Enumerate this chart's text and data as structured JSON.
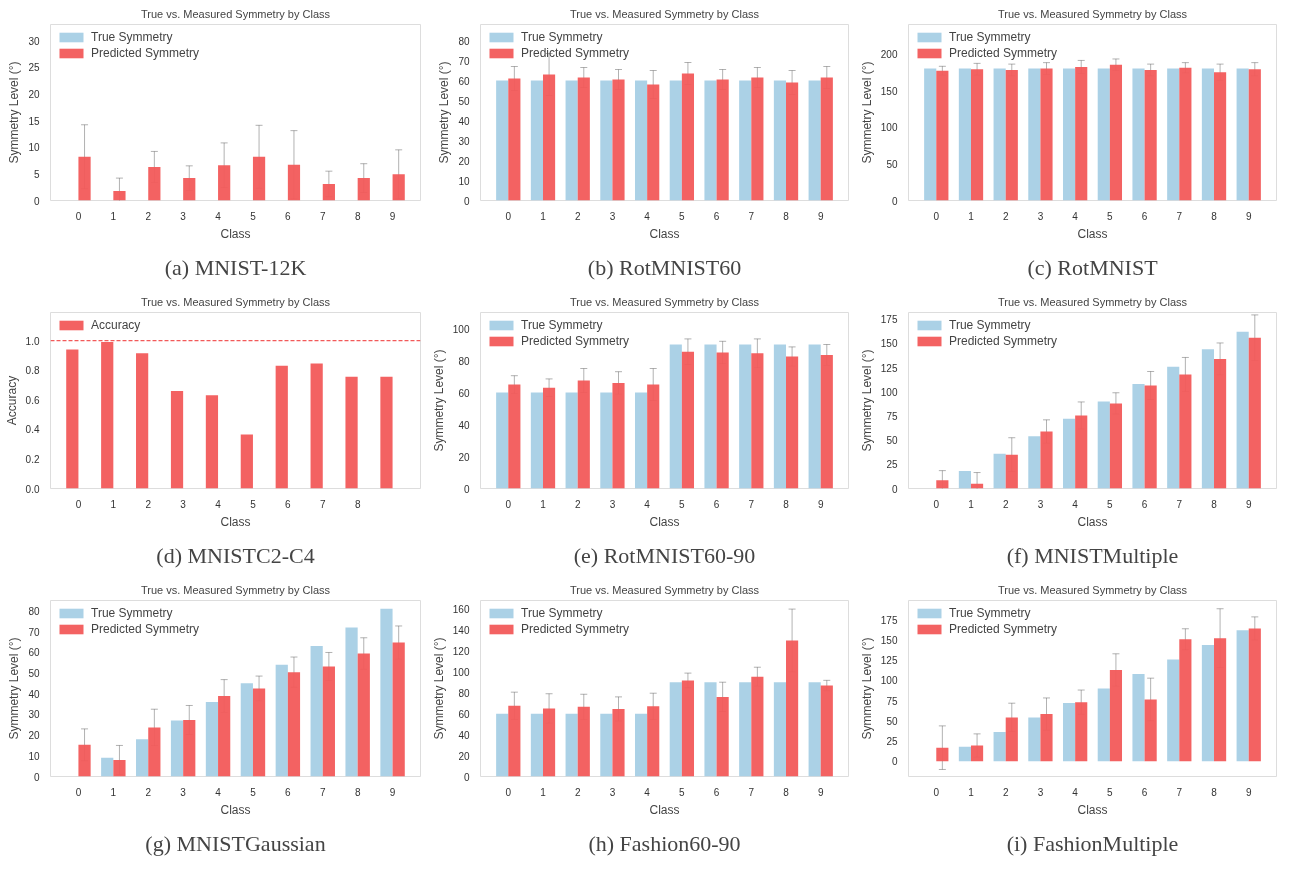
{
  "chart_data": [
    {
      "type": "bar",
      "title": "True vs. Measured Symmetry by Class",
      "xlabel": "Class",
      "ylabel": "Symmetry Level (°)",
      "categories": [
        "0",
        "1",
        "2",
        "3",
        "4",
        "5",
        "6",
        "7",
        "8",
        "9"
      ],
      "ylim": [
        0,
        33
      ],
      "yticks": [
        0,
        5,
        10,
        15,
        20,
        25,
        30
      ],
      "legend": "top left",
      "annotations": [
        "(a) MNIST-12K"
      ],
      "series": [
        {
          "name": "True Symmetry",
          "color": "#a6cfe5",
          "values": [
            0,
            0,
            0,
            0,
            0,
            0,
            0,
            0,
            0,
            0
          ]
        },
        {
          "name": "Predicted Symmetry",
          "color": "#f25a5a",
          "values": [
            8.2,
            1.8,
            6.3,
            4.2,
            6.6,
            8.2,
            6.7,
            3.1,
            4.2,
            4.9
          ],
          "errors": [
            6.0,
            2.4,
            2.9,
            2.3,
            4.2,
            5.9,
            6.4,
            2.4,
            2.7,
            4.6
          ]
        }
      ]
    },
    {
      "type": "bar",
      "title": "True vs. Measured Symmetry by Class",
      "xlabel": "Class",
      "ylabel": "Symmetry Level (°)",
      "categories": [
        "0",
        "1",
        "2",
        "3",
        "4",
        "5",
        "6",
        "7",
        "8",
        "9"
      ],
      "ylim": [
        0,
        88
      ],
      "yticks": [
        0,
        10,
        20,
        30,
        40,
        50,
        60,
        70,
        80
      ],
      "legend": "top left",
      "annotations": [
        "(b) RotMNIST60"
      ],
      "series": [
        {
          "name": "True Symmetry",
          "color": "#a6cfe5",
          "values": [
            60,
            60,
            60,
            60,
            60,
            60,
            60,
            60,
            60,
            60
          ]
        },
        {
          "name": "Predicted Symmetry",
          "color": "#f25a5a",
          "values": [
            61,
            63,
            61.5,
            60.5,
            58,
            63.5,
            60.5,
            61.5,
            59,
            61.5
          ],
          "errors": [
            6,
            10.5,
            5,
            5,
            7,
            5.5,
            5,
            5,
            6,
            5.5
          ]
        }
      ]
    },
    {
      "type": "bar",
      "title": "True vs. Measured Symmetry by Class",
      "xlabel": "Class",
      "ylabel": "Symmetry Level (°)",
      "categories": [
        "0",
        "1",
        "2",
        "3",
        "4",
        "5",
        "6",
        "7",
        "8",
        "9"
      ],
      "ylim": [
        0,
        240
      ],
      "yticks": [
        0,
        50,
        100,
        150,
        200
      ],
      "legend": "top left",
      "annotations": [
        "(c) RotMNIST"
      ],
      "series": [
        {
          "name": "True Symmetry",
          "color": "#a6cfe5",
          "values": [
            180,
            180,
            180,
            180,
            180,
            180,
            180,
            180,
            180,
            180
          ]
        },
        {
          "name": "Predicted Symmetry",
          "color": "#f25a5a",
          "values": [
            177,
            179,
            178,
            180,
            182,
            185,
            178,
            181,
            175,
            179
          ],
          "errors": [
            6,
            8,
            8,
            8,
            9,
            8,
            8,
            7,
            11,
            9
          ]
        }
      ]
    },
    {
      "type": "bar",
      "title": "True vs. Measured Symmetry by Class",
      "xlabel": "Class",
      "ylabel": "Accuracy",
      "categories": [
        "0",
        "1",
        "2",
        "3",
        "4",
        "5",
        "6",
        "7",
        "8",
        null
      ],
      "ylim": [
        0,
        1.19
      ],
      "yticks": [
        {
          "value": 0,
          "label": "0.0"
        },
        0.2,
        0.4,
        0.6,
        0.8,
        {
          "value": 1,
          "label": "1.0"
        }
      ],
      "legend": "top left",
      "annotations": [
        "(d) MNISTC2-C4"
      ],
      "ref_lines": [
        {
          "axis": "y",
          "value": 1.0,
          "color": "#f25a5a",
          "line_style": "dashed"
        }
      ],
      "series": [
        {
          "name": "Accuracy",
          "color": "#f25a5a",
          "values": [
            0.94,
            0.99,
            0.915,
            0.66,
            0.63,
            0.365,
            0.83,
            0.845,
            0.755,
            0.755
          ]
        }
      ]
    },
    {
      "type": "bar",
      "title": "True vs. Measured Symmetry by Class",
      "xlabel": "Class",
      "ylabel": "Symmetry Level (°)",
      "categories": [
        "0",
        "1",
        "2",
        "3",
        "4",
        "5",
        "6",
        "7",
        "8",
        "9"
      ],
      "ylim": [
        0,
        110
      ],
      "yticks": [
        0,
        20,
        40,
        60,
        80,
        100
      ],
      "legend": "top left",
      "annotations": [
        "(e) RotMNIST60-90"
      ],
      "series": [
        {
          "name": "True Symmetry",
          "color": "#a6cfe5",
          "values": [
            60,
            60,
            60,
            60,
            60,
            90,
            90,
            90,
            90,
            90
          ]
        },
        {
          "name": "Predicted Symmetry",
          "color": "#f25a5a",
          "values": [
            65,
            63,
            67.5,
            66,
            65,
            85.5,
            85,
            84.5,
            82.5,
            83.5
          ],
          "errors": [
            5.5,
            5.5,
            7.5,
            7,
            10,
            8,
            7,
            9,
            6,
            6.5
          ]
        }
      ]
    },
    {
      "type": "bar",
      "title": "True vs. Measured Symmetry by Class",
      "xlabel": "Class",
      "ylabel": "Symmetry Level (°)",
      "categories": [
        "0",
        "1",
        "2",
        "3",
        "4",
        "5",
        "6",
        "7",
        "8",
        "9"
      ],
      "ylim": [
        0,
        182
      ],
      "yticks": [
        0,
        25,
        50,
        75,
        100,
        125,
        150,
        175
      ],
      "legend": "top left",
      "annotations": [
        "(f) MNISTMultiple"
      ],
      "series": [
        {
          "name": "True Symmetry",
          "color": "#a6cfe5",
          "values": [
            0,
            18,
            36,
            54,
            72,
            90,
            108,
            126,
            144,
            162
          ]
        },
        {
          "name": "Predicted Symmetry",
          "color": "#f25a5a",
          "values": [
            8.5,
            5,
            35,
            59,
            75.5,
            88,
            106.5,
            118,
            134,
            156
          ],
          "errors": [
            10,
            11.5,
            17.5,
            12,
            14,
            11,
            14.5,
            17.5,
            16.5,
            23.5
          ]
        }
      ]
    },
    {
      "type": "bar",
      "title": "True vs. Measured Symmetry by Class",
      "xlabel": "Class",
      "ylabel": "Symmetry Level (°)",
      "categories": [
        "0",
        "1",
        "2",
        "3",
        "4",
        "5",
        "6",
        "7",
        "8",
        "9"
      ],
      "ylim": [
        0,
        85
      ],
      "yticks": [
        0,
        10,
        20,
        30,
        40,
        50,
        60,
        70,
        80
      ],
      "legend": "top left",
      "annotations": [
        "(g) MNISTGaussian"
      ],
      "series": [
        {
          "name": "True Symmetry",
          "color": "#a6cfe5",
          "values": [
            0,
            9,
            18,
            27,
            36,
            45,
            54,
            63,
            72,
            81
          ]
        },
        {
          "name": "Predicted Symmetry",
          "color": "#f25a5a",
          "values": [
            15.3,
            8,
            23.7,
            27.3,
            38.9,
            42.5,
            50.4,
            53.1,
            59.4,
            64.7
          ],
          "errors": [
            7.7,
            7,
            8.8,
            7,
            7.9,
            6,
            7.3,
            6.8,
            7.6,
            8
          ]
        }
      ]
    },
    {
      "type": "bar",
      "title": "True vs. Measured Symmetry by Class",
      "xlabel": "Class",
      "ylabel": "Symmetry Level (°)",
      "categories": [
        "0",
        "1",
        "2",
        "3",
        "4",
        "5",
        "6",
        "7",
        "8",
        "9"
      ],
      "ylim": [
        0,
        168
      ],
      "yticks": [
        0,
        20,
        40,
        60,
        80,
        100,
        120,
        140,
        160
      ],
      "legend": "top left",
      "annotations": [
        "(h) Fashion60-90"
      ],
      "series": [
        {
          "name": "True Symmetry",
          "color": "#a6cfe5",
          "values": [
            60,
            60,
            60,
            60,
            60,
            90,
            90,
            90,
            90,
            90
          ]
        },
        {
          "name": "Predicted Symmetry",
          "color": "#f25a5a",
          "values": [
            67.5,
            65,
            66.5,
            64.5,
            67,
            91.7,
            76,
            95.3,
            129.8,
            86.8
          ],
          "errors": [
            13,
            14,
            12,
            11.5,
            12.5,
            7,
            14,
            9,
            30,
            5
          ]
        }
      ]
    },
    {
      "type": "bar",
      "title": "True vs. Measured Symmetry by Class",
      "xlabel": "Class",
      "ylabel": "Symmetry Level (°)",
      "categories": [
        "0",
        "1",
        "2",
        "3",
        "4",
        "5",
        "6",
        "7",
        "8",
        "9"
      ],
      "ylim": [
        -19,
        199
      ],
      "yticks": [
        0,
        25,
        50,
        75,
        100,
        125,
        150,
        175
      ],
      "legend": "top left",
      "annotations": [
        "(i) FashionMultiple"
      ],
      "series": [
        {
          "name": "True Symmetry",
          "color": "#a6cfe5",
          "values": [
            0,
            18,
            36,
            54,
            72,
            90,
            108,
            126,
            144,
            162
          ]
        },
        {
          "name": "Predicted Symmetry",
          "color": "#f25a5a",
          "values": [
            16.7,
            19.4,
            54.2,
            58.3,
            73.1,
            113,
            76.4,
            151,
            152.3,
            164.4
          ],
          "errors": [
            27,
            14.4,
            17.6,
            20,
            15,
            20,
            26.4,
            13,
            36.5,
            14.3
          ]
        }
      ]
    }
  ]
}
